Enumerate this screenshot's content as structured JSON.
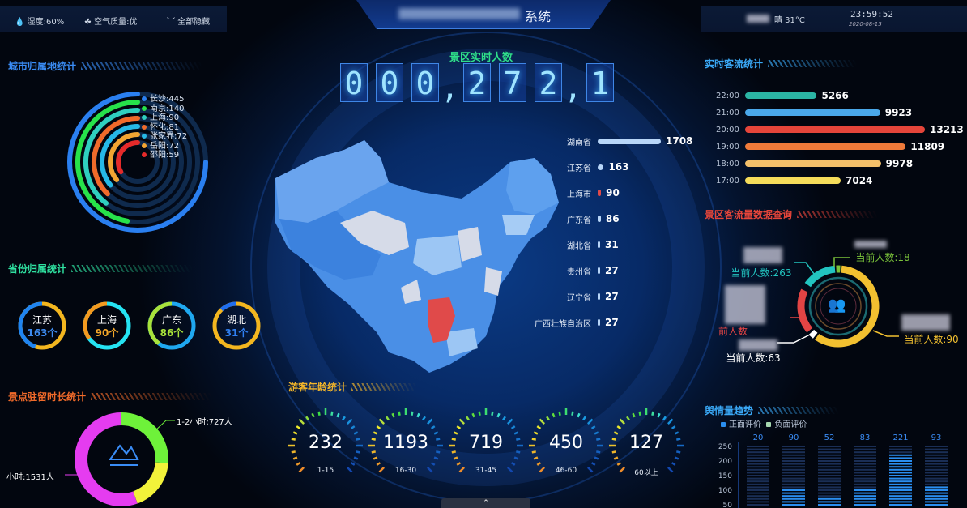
{
  "header": {
    "humidity": "湿度:60%",
    "air_quality": "空气质量:优",
    "hide_all": "全部隐藏",
    "title_suffix": "系统",
    "weather": "晴 31°C",
    "time": "23:59:52",
    "date": "2020-08-15"
  },
  "counter": {
    "label": "景区实时人数",
    "digits": [
      "0",
      "0",
      "0",
      "2",
      "7",
      "2",
      "1"
    ]
  },
  "city_stats": {
    "title": "城市归属地统计",
    "items": [
      {
        "name": "长沙",
        "value": 445,
        "label": "长沙:445",
        "color": "#2a7ff0"
      },
      {
        "name": "南京",
        "value": 140,
        "label": "南京:140",
        "color": "#27e24a"
      },
      {
        "name": "上海",
        "value": 90,
        "label": "上海:90",
        "color": "#2fcfbf"
      },
      {
        "name": "怀化",
        "value": 81,
        "label": "怀化:81",
        "color": "#f06a2a"
      },
      {
        "name": "张家界",
        "value": 72,
        "label": "张家界:72",
        "color": "#26b8e6"
      },
      {
        "name": "岳阳",
        "value": 72,
        "label": "岳阳:72",
        "color": "#f2a532"
      },
      {
        "name": "邵阳",
        "value": 59,
        "label": "邵阳:59",
        "color": "#e52a2a"
      }
    ]
  },
  "province_stats": {
    "title": "省份归属统计",
    "items": [
      {
        "name": "江苏",
        "count": "163个",
        "colors": [
          "#f3b61f",
          "#1f84f0"
        ],
        "share": 0.55,
        "text_color": "#3d8bf0"
      },
      {
        "name": "上海",
        "count": "90个",
        "colors": [
          "#25e3f2",
          "#f39a1f"
        ],
        "share": 0.65,
        "text_color": "#f3a629"
      },
      {
        "name": "广东",
        "count": "86个",
        "colors": [
          "#1fa8f0",
          "#a8e23a"
        ],
        "share": 0.6,
        "text_color": "#a8e23a"
      },
      {
        "name": "湖北",
        "count": "31个",
        "colors": [
          "#f3b61f",
          "#1f6ef0"
        ],
        "share": 0.88,
        "text_color": "#2f7ff0"
      }
    ]
  },
  "dwell_stats": {
    "title": "景点驻留时长统计",
    "segments": [
      {
        "label": "小时:1531人",
        "value": 1531,
        "color": "#e53cf0"
      },
      {
        "label": "1-2小时:727人",
        "value": 727,
        "color": "#6ef23a"
      },
      {
        "label": "",
        "value": 500,
        "color": "#f2f23a"
      }
    ]
  },
  "map": {
    "highlight_color": "#e04a4a",
    "ranking": [
      {
        "name": "湖南省",
        "value": "1708",
        "n": 1708
      },
      {
        "name": "江苏省",
        "value": "163",
        "n": 163
      },
      {
        "name": "上海市",
        "value": "90",
        "n": 90
      },
      {
        "name": "广东省",
        "value": "86",
        "n": 86
      },
      {
        "name": "湖北省",
        "value": "31",
        "n": 31
      },
      {
        "name": "贵州省",
        "value": "27",
        "n": 27
      },
      {
        "name": "辽宁省",
        "value": "27",
        "n": 27
      },
      {
        "name": "广西壮族自治区",
        "value": "27",
        "n": 27
      }
    ]
  },
  "age_stats": {
    "title": "游客年龄统计",
    "items": [
      {
        "value": "232",
        "range": "1-15"
      },
      {
        "value": "1193",
        "range": "16-30"
      },
      {
        "value": "719",
        "range": "31-45"
      },
      {
        "value": "450",
        "range": "46-60"
      },
      {
        "value": "127",
        "range": "60以上"
      }
    ]
  },
  "realtime_flow": {
    "title": "实时客流统计",
    "max": 13213,
    "items": [
      {
        "time": "22:00",
        "value": 5266,
        "color": "#2bb5a4"
      },
      {
        "time": "21:00",
        "value": 9923,
        "color": "#4aa8ea"
      },
      {
        "time": "20:00",
        "value": 13213,
        "color": "#e5453a"
      },
      {
        "time": "19:00",
        "value": 11809,
        "color": "#ef7a3a"
      },
      {
        "time": "18:00",
        "value": 9978,
        "color": "#f4c06a"
      },
      {
        "time": "17:00",
        "value": 7024,
        "color": "#f5dc5a"
      }
    ]
  },
  "scenic_query": {
    "title": "景区客流量数据查询",
    "items": [
      {
        "label": "当前人数:263",
        "value": 263,
        "color": "#22c4c0"
      },
      {
        "label": "当前人数:18",
        "value": 18,
        "color": "#7ac23a"
      },
      {
        "label": "当前人数:90",
        "value": 90,
        "color": "#f2c030"
      },
      {
        "label": "当前人数:63",
        "value": 63,
        "color": "#ffffff"
      },
      {
        "label": "前人数",
        "value": 50,
        "color": "#e24444"
      }
    ],
    "center_icon": "users-icon"
  },
  "sentiment": {
    "title": "舆情量趋势",
    "legend": [
      "正面评价",
      "负面评价"
    ],
    "legend_colors": [
      "#2a8ef0",
      "#a6d8b0"
    ],
    "values": [
      "20",
      "90",
      "52",
      "83",
      "221",
      "93"
    ],
    "nums": [
      20,
      90,
      52,
      83,
      221,
      93
    ],
    "yticks": [
      "250",
      "200",
      "150",
      "100",
      "50"
    ],
    "ymax": 250
  }
}
